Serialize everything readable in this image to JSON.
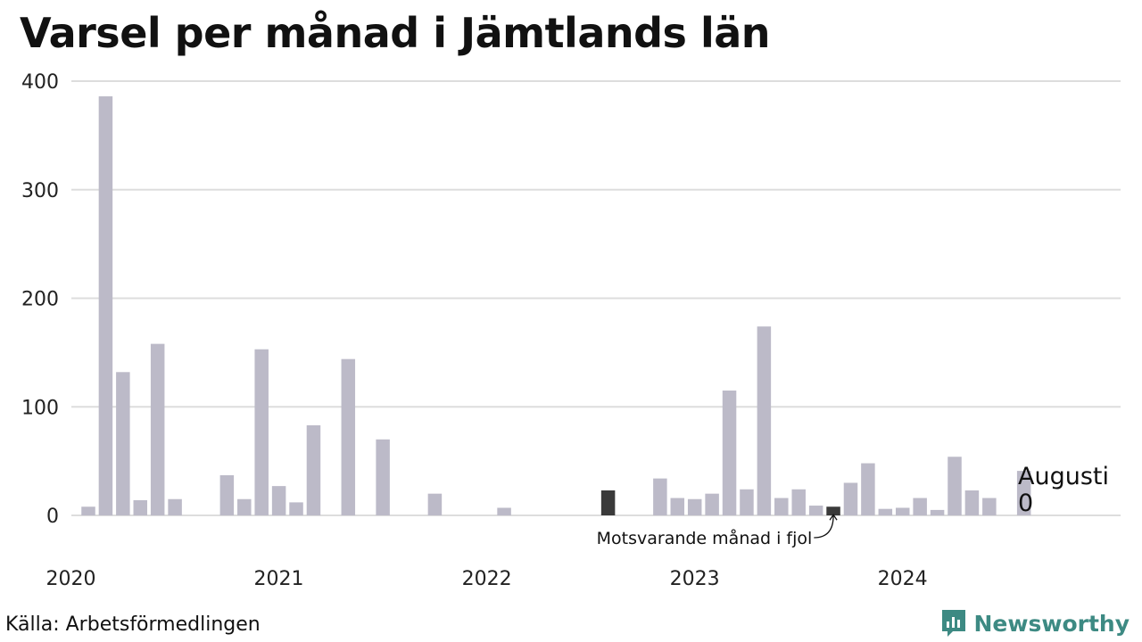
{
  "title": "Varsel per månad i Jämtlands län",
  "source": "Källa: Arbetsförmedlingen",
  "brand": "Newsworthy",
  "colors": {
    "bar": "#bcbac8",
    "highlight": "#3a3a3a",
    "grid": "#dddddd",
    "brand": "#3d8a83"
  },
  "chart_data": {
    "type": "bar",
    "ylim": [
      0,
      400
    ],
    "yticks": [
      0,
      100,
      200,
      300,
      400
    ],
    "xticks": [
      {
        "index": 0,
        "label": "2020"
      },
      {
        "index": 12,
        "label": "2021"
      },
      {
        "index": 24,
        "label": "2022"
      },
      {
        "index": 36,
        "label": "2023"
      },
      {
        "index": 48,
        "label": "2024"
      }
    ],
    "start": "2020-01",
    "values": [
      8,
      386,
      132,
      14,
      158,
      15,
      0,
      0,
      37,
      15,
      153,
      27,
      12,
      83,
      0,
      144,
      0,
      70,
      0,
      0,
      20,
      0,
      0,
      0,
      7,
      0,
      0,
      0,
      0,
      0,
      23,
      0,
      0,
      34,
      16,
      15,
      20,
      115,
      24,
      174,
      16,
      24,
      9,
      8,
      30,
      48,
      6,
      7,
      16,
      5,
      54,
      23,
      16,
      0,
      41,
      0
    ],
    "highlight": [
      30,
      43
    ],
    "annotation": {
      "index": 43,
      "text": "Motsvarande månad i fjol"
    },
    "last_label": {
      "month": "Augusti",
      "value": "0"
    }
  }
}
